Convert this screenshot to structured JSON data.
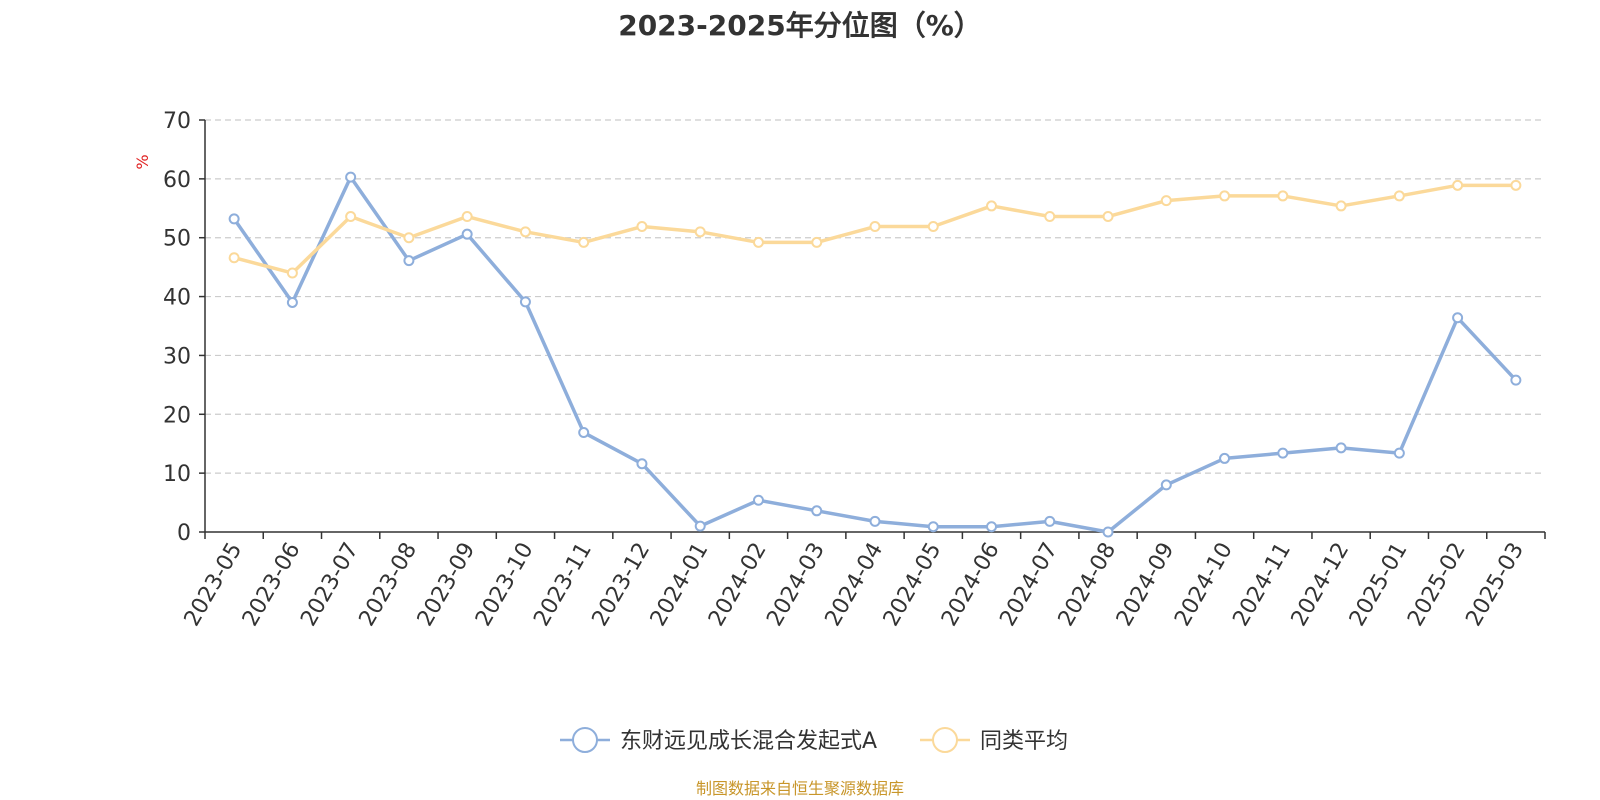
{
  "chart_data": {
    "type": "line",
    "title": "2023-2025年分位图（%）",
    "ylabel": "%",
    "xlabel": "",
    "ylim": [
      0,
      70
    ],
    "yticks": [
      0,
      10,
      20,
      30,
      40,
      50,
      60,
      70
    ],
    "grid": true,
    "legend_position": "bottom-center",
    "categories": [
      "2023-05",
      "2023-06",
      "2023-07",
      "2023-08",
      "2023-09",
      "2023-10",
      "2023-11",
      "2023-12",
      "2024-01",
      "2024-02",
      "2024-03",
      "2024-04",
      "2024-05",
      "2024-06",
      "2024-07",
      "2024-08",
      "2024-09",
      "2024-10",
      "2024-11",
      "2024-12",
      "2025-01",
      "2025-02",
      "2025-03"
    ],
    "series": [
      {
        "name": "东财远见成长混合发起式A",
        "color": "#8eaedb",
        "values": [
          53.2,
          39,
          60.3,
          46.1,
          50.6,
          39.1,
          16.9,
          11.6,
          1,
          5.4,
          3.6,
          1.8,
          0.9,
          0.9,
          1.8,
          0,
          8,
          12.5,
          13.4,
          14.3,
          13.4,
          36.4,
          25.8
        ]
      },
      {
        "name": "同类平均",
        "color": "#fbd99a",
        "values": [
          46.6,
          44,
          53.6,
          50,
          53.6,
          51,
          49.2,
          51.9,
          51,
          49.2,
          49.2,
          51.9,
          51.9,
          55.4,
          53.6,
          53.6,
          56.3,
          57.1,
          57.1,
          55.4,
          57.1,
          58.9,
          58.9
        ]
      }
    ]
  },
  "source_note": "制图数据来自恒生聚源数据库"
}
